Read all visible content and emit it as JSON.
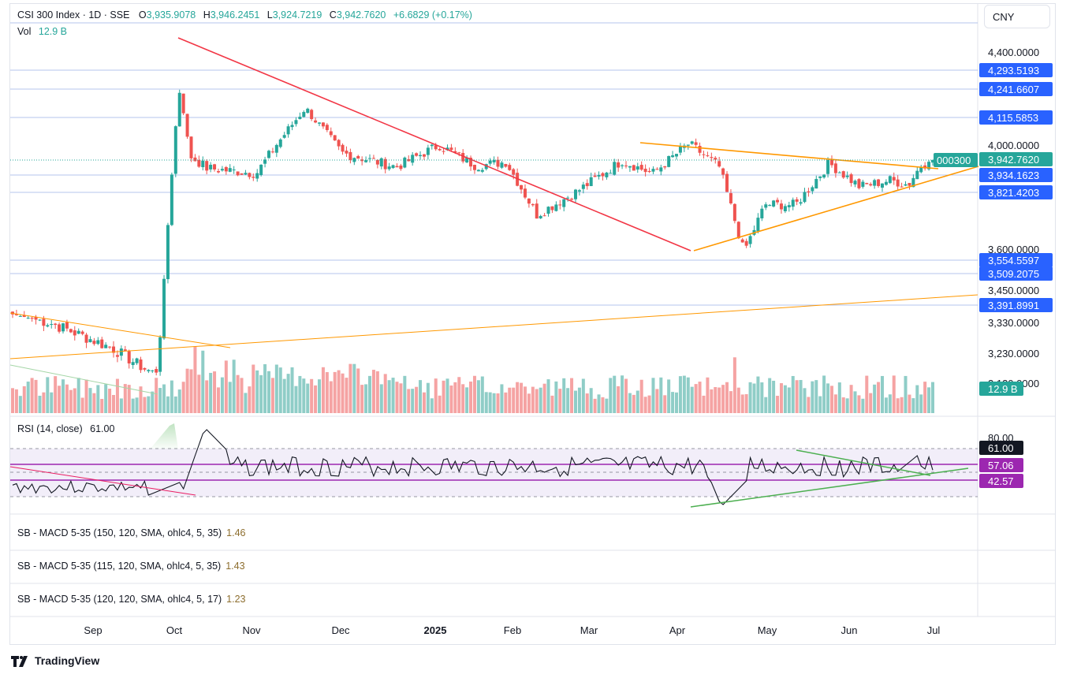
{
  "header": {
    "symbol": "CSI 300 Index · 1D · SSE",
    "open_label": "O",
    "open": "3,935.9078",
    "high_label": "H",
    "high": "3,946.2451",
    "low_label": "L",
    "low": "3,924.7219",
    "close_label": "C",
    "close": "3,942.7620",
    "change": "+6.6829 (+0.17%)",
    "vol_label": "Vol",
    "vol": "12.9 B"
  },
  "currency": "CNY",
  "rsi": {
    "label": "RSI (14, close)",
    "value": "61.00"
  },
  "macd_panels": [
    {
      "label": "SB - MACD 5-35 (150, 120, SMA, ohlc4, 5, 35)",
      "value": "1.46"
    },
    {
      "label": "SB - MACD 5-35 (115, 120, SMA, ohlc4, 5, 35)",
      "value": "1.43"
    },
    {
      "label": "SB - MACD 5-35 (120, 120, SMA, ohlc4, 5, 17)",
      "value": "1.23"
    }
  ],
  "brand": "TradingView",
  "colors": {
    "up": "#26a69a",
    "down": "#ef5350",
    "up_vol": "#8fcdc7",
    "down_vol": "#f5a3a3",
    "hline": "#2962ff",
    "rsi": "#7e57c2",
    "trend_red": "#f23645",
    "trend_orange": "#ff9800",
    "trend_green": "#4caf50"
  },
  "chart_data": {
    "type": "candlestick",
    "title": "CSI 300 Index · 1D · SSE",
    "xlabel": "",
    "ylabel": "",
    "ylim": [
      3230,
      4400
    ],
    "price_axis_ticks": [
      "4,400.0000",
      "4,000.0000",
      "3,600.0000",
      "3,450.0000",
      "3,330.0000",
      "3,230.0000",
      "3,130.0000"
    ],
    "x_tick_labels": [
      "Sep",
      "Oct",
      "Nov",
      "Dec",
      "2025",
      "Feb",
      "Mar",
      "Apr",
      "May",
      "Jun",
      "Jul"
    ],
    "horizontal_levels": [
      "4,293.5193",
      "4,241.6607",
      "4,115.5853",
      "3,934.1623",
      "3,821.4203",
      "3,554.5597",
      "3,509.2075",
      "3,391.8991"
    ],
    "last_price_label": "3,942.7620",
    "symbol_tag": "000300",
    "volume_label": "12.9 B",
    "rsi_axis_tick": "80.00",
    "rsi_labels": [
      "61.00",
      "57.06",
      "42.57"
    ],
    "price_series": [
      {
        "date": "2024-08",
        "close": 3360
      },
      {
        "date": "2024-08-20",
        "close": 3330
      },
      {
        "date": "2024-08-28",
        "close": 3290
      },
      {
        "date": "2024-09-05",
        "close": 3245
      },
      {
        "date": "2024-09-13",
        "close": 3180
      },
      {
        "date": "2024-09-18",
        "close": 3160
      },
      {
        "date": "2024-09-24",
        "close": 3350
      },
      {
        "date": "2024-09-26",
        "close": 3700
      },
      {
        "date": "2024-09-30",
        "close": 4017
      },
      {
        "date": "2024-10-08",
        "close": 4256
      },
      {
        "date": "2024-10-09",
        "close": 3960
      },
      {
        "date": "2024-10-18",
        "close": 3910
      },
      {
        "date": "2024-10-31",
        "close": 3891
      },
      {
        "date": "2024-11-07",
        "close": 4160
      },
      {
        "date": "2024-11-15",
        "close": 3970
      },
      {
        "date": "2024-11-29",
        "close": 3916
      },
      {
        "date": "2024-12-10",
        "close": 4000
      },
      {
        "date": "2024-12-20",
        "close": 3920
      },
      {
        "date": "2024-12-31",
        "close": 3935
      },
      {
        "date": "2025-01-10",
        "close": 3732
      },
      {
        "date": "2025-01-24",
        "close": 3820
      },
      {
        "date": "2025-02-14",
        "close": 3940
      },
      {
        "date": "2025-02-28",
        "close": 3890
      },
      {
        "date": "2025-03-14",
        "close": 4006
      },
      {
        "date": "2025-03-28",
        "close": 3915
      },
      {
        "date": "2025-04-07",
        "close": 3589
      },
      {
        "date": "2025-04-18",
        "close": 3772
      },
      {
        "date": "2025-04-30",
        "close": 3770
      },
      {
        "date": "2025-05-14",
        "close": 3930
      },
      {
        "date": "2025-05-30",
        "close": 3840
      },
      {
        "date": "2025-06-13",
        "close": 3865
      },
      {
        "date": "2025-06-20",
        "close": 3847
      },
      {
        "date": "2025-06-27",
        "close": 3921
      },
      {
        "date": "2025-07-01",
        "close": 3942.762
      }
    ]
  }
}
